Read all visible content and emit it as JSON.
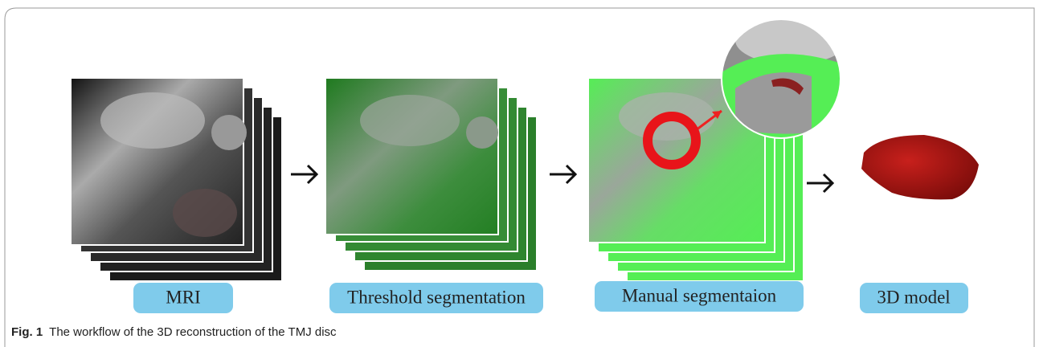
{
  "stages": [
    {
      "label": "MRI"
    },
    {
      "label": "Threshold segmentation"
    },
    {
      "label": "Manual segmentaion"
    },
    {
      "label": "3D model"
    }
  ],
  "caption": {
    "label": "Fig. 1",
    "text": "The workflow of the 3D reconstruction of the TMJ disc"
  }
}
